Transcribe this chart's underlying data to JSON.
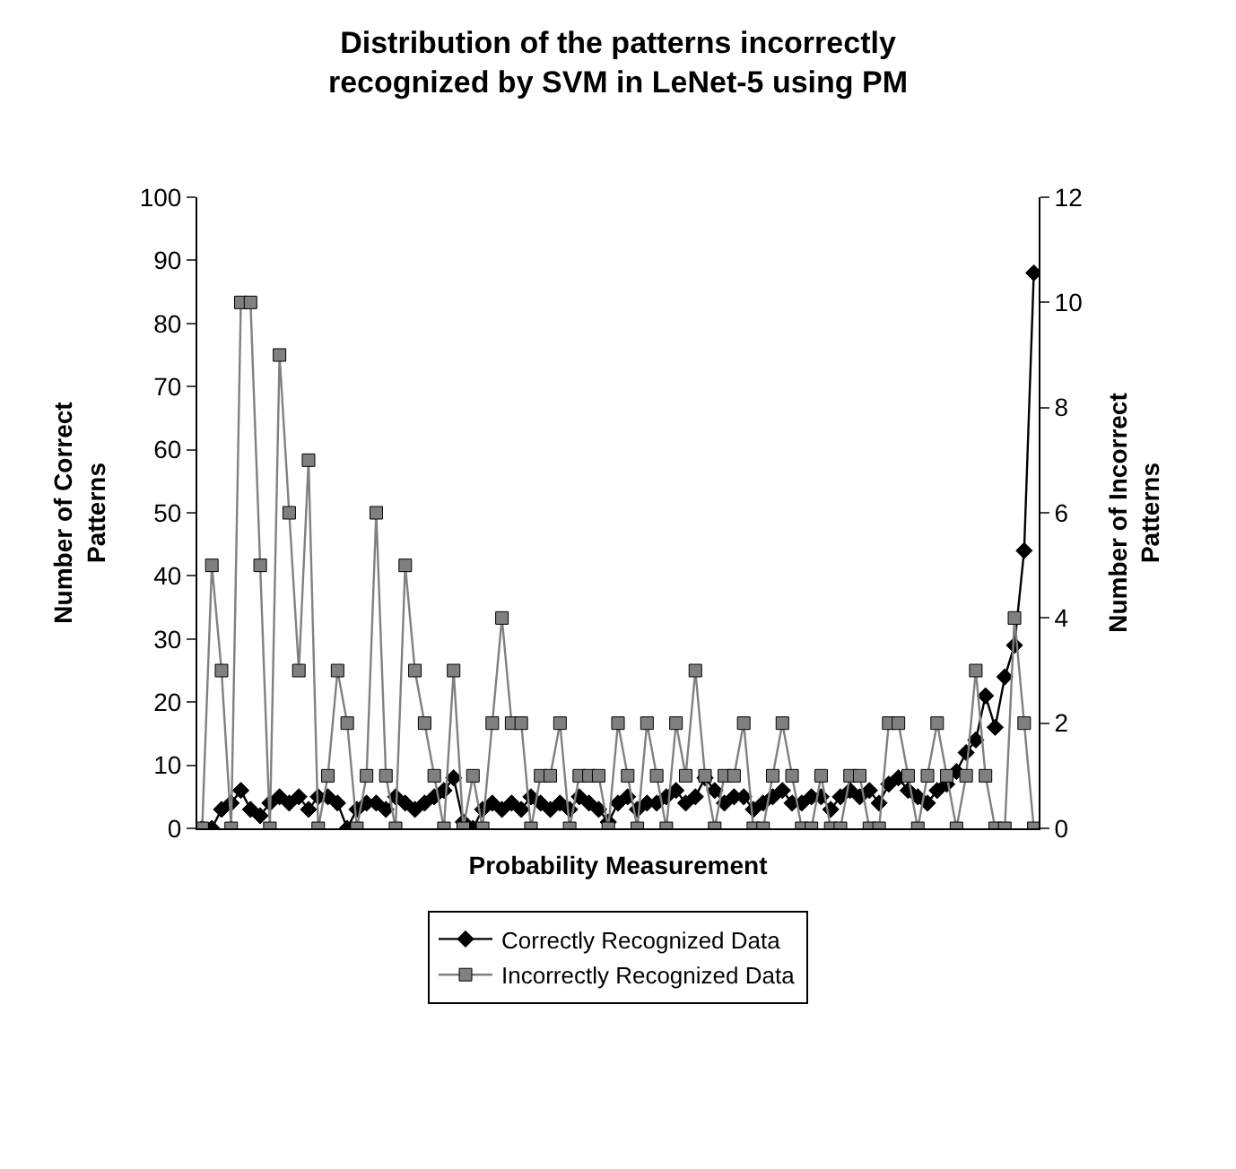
{
  "chart_data": {
    "type": "line",
    "title": "Distribution of the patterns incorrectly\nrecognized by SVM in LeNet-5 using PM",
    "xlabel": "Probability Measurement",
    "ylabel": "Number of Correct\nPatterns",
    "y2label": "Number of Incorrect\nPatterns",
    "categories": [
      null,
      null,
      null,
      null,
      null,
      null,
      null,
      null,
      null,
      null,
      null,
      null,
      null,
      null,
      null,
      null,
      null,
      null,
      null,
      null,
      null,
      null,
      null,
      null,
      null,
      null,
      null,
      null,
      null,
      null,
      null,
      null,
      null,
      null,
      null,
      null,
      null,
      null,
      null,
      null,
      null,
      null,
      null,
      null,
      null,
      null,
      null,
      null,
      null,
      null,
      null,
      null,
      null,
      null,
      null,
      null,
      null,
      null,
      null,
      null,
      null,
      null,
      null,
      null,
      null,
      null,
      null,
      null,
      null,
      null,
      null,
      null,
      null,
      null,
      null,
      null,
      null,
      null,
      null,
      null,
      null,
      null,
      null,
      null,
      null,
      null,
      null
    ],
    "series": [
      {
        "name": "Correctly Recognized Data",
        "color": "#000000",
        "marker": "diamond",
        "values": [
          0,
          0,
          3,
          4,
          6,
          3,
          2,
          4,
          5,
          4,
          5,
          3,
          5,
          5,
          4,
          0,
          3,
          4,
          4,
          3,
          5,
          4,
          3,
          4,
          5,
          6,
          8,
          1,
          0,
          3,
          4,
          3,
          4,
          3,
          5,
          4,
          3,
          4,
          3,
          5,
          4,
          3,
          1,
          4,
          5,
          3,
          4,
          4,
          5,
          6,
          4,
          5,
          8,
          6,
          4,
          5,
          5,
          3,
          4,
          5,
          6,
          4,
          4,
          5,
          5,
          3,
          5,
          6,
          5,
          6,
          4,
          7,
          8,
          6,
          5,
          4,
          6,
          7,
          9,
          12,
          14,
          21,
          16,
          24,
          29,
          44,
          88
        ]
      },
      {
        "name": "Incorrectly Recognized Data",
        "color": "#808080",
        "marker": "square",
        "axis": "y2",
        "values": [
          0,
          5,
          3,
          0,
          10,
          10,
          5,
          0,
          9,
          6,
          3,
          7,
          0,
          1,
          3,
          2,
          0,
          1,
          6,
          1,
          0,
          5,
          3,
          2,
          1,
          0,
          3,
          0,
          1,
          0,
          2,
          4,
          2,
          2,
          0,
          1,
          1,
          2,
          0,
          1,
          1,
          1,
          0,
          2,
          1,
          0,
          2,
          1,
          0,
          2,
          1,
          3,
          1,
          0,
          1,
          1,
          2,
          0,
          0,
          1,
          2,
          1,
          0,
          0,
          1,
          0,
          0,
          1,
          1,
          0,
          0,
          2,
          2,
          1,
          0,
          1,
          2,
          1,
          0,
          1,
          3,
          1,
          0,
          0,
          4,
          2,
          0
        ]
      }
    ],
    "ylim": [
      0,
      100
    ],
    "yticks": [
      0,
      10,
      20,
      30,
      40,
      50,
      60,
      70,
      80,
      90,
      100
    ],
    "y2lim": [
      0,
      12
    ],
    "y2ticks": [
      0,
      2,
      4,
      6,
      8,
      10,
      12
    ],
    "tick_labels": "y",
    "legend": "bottom"
  }
}
